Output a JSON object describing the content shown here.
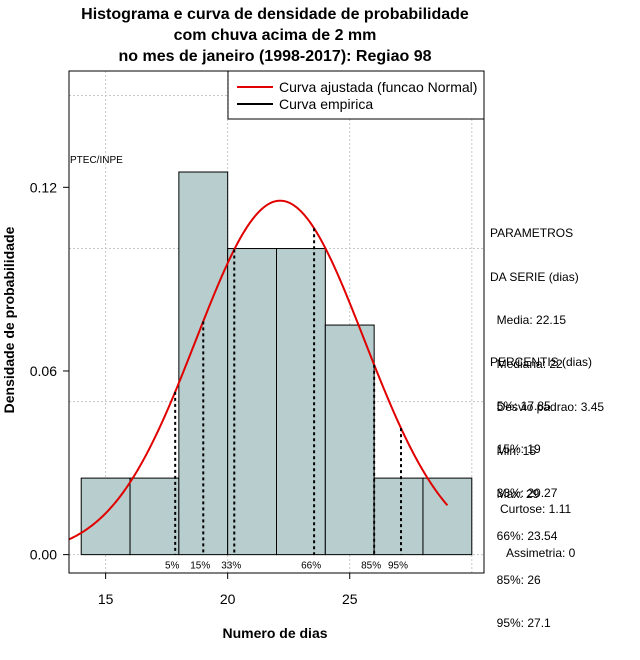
{
  "chart_data": {
    "type": "bar",
    "title": [
      "Histograma e curva de densidade de probabilidade",
      "com chuva acima de 2 mm",
      "no mes de janeiro (1998-2017): Regiao 98"
    ],
    "xlabel": "Numero de dias",
    "ylabel": "Densidade de probabilidade",
    "xlim": [
      13.5,
      30.5
    ],
    "ylim": [
      -0.006,
      0.158
    ],
    "x_ticks": [
      15,
      20,
      25
    ],
    "y_ticks": [
      0.0,
      0.06,
      0.12
    ],
    "y_tick_labels": [
      "0.00",
      "0.06",
      "0.12"
    ],
    "histogram_bins": [
      {
        "from": 14,
        "to": 16,
        "density": 0.025
      },
      {
        "from": 16,
        "to": 18,
        "density": 0.025
      },
      {
        "from": 18,
        "to": 20,
        "density": 0.125
      },
      {
        "from": 20,
        "to": 22,
        "density": 0.1
      },
      {
        "from": 22,
        "to": 24,
        "density": 0.1
      },
      {
        "from": 24,
        "to": 26,
        "density": 0.075
      },
      {
        "from": 26,
        "to": 28,
        "density": 0.025
      },
      {
        "from": 28,
        "to": 30,
        "density": 0.025
      }
    ],
    "normal_curve": {
      "mean": 22.15,
      "sd": 3.45,
      "x_range": [
        13.5,
        29
      ]
    },
    "percentile_lines": [
      {
        "label": "5%",
        "x": 17.85
      },
      {
        "label": "15%",
        "x": 19
      },
      {
        "label": "33%",
        "x": 20.27
      },
      {
        "label": "66%",
        "x": 23.54
      },
      {
        "label": "85%",
        "x": 26
      },
      {
        "label": "95%",
        "x": 27.1
      }
    ],
    "legend": [
      "Curva ajustada (funcao Normal)",
      "Curva empirica"
    ],
    "legend_placement": "top-right",
    "annotation": "PTEC/INPE",
    "grid": true,
    "colors": {
      "bars": "#b8cece",
      "curve": "#e00000",
      "percentile": "#000000",
      "grid": "#c8c8c8"
    }
  },
  "panel": {
    "params_lines": [
      "PARAMETROS",
      "DA SERIE (dias)",
      "  Media: 22.15",
      "  Mediana: 22",
      "  Desvio padrao: 3.45",
      "  Min: 15",
      "  Max: 29"
    ],
    "percentis_lines": [
      "PERCENTIS (dias)",
      "  5%: 17.85",
      "  15%: 19",
      "  33%: 20.27",
      "  66%: 23.54",
      "  85%: 26",
      "  95%: 27.1"
    ],
    "shape_lines": [
      "Curtose: 1.11",
      "  Assimetria: 0"
    ]
  }
}
